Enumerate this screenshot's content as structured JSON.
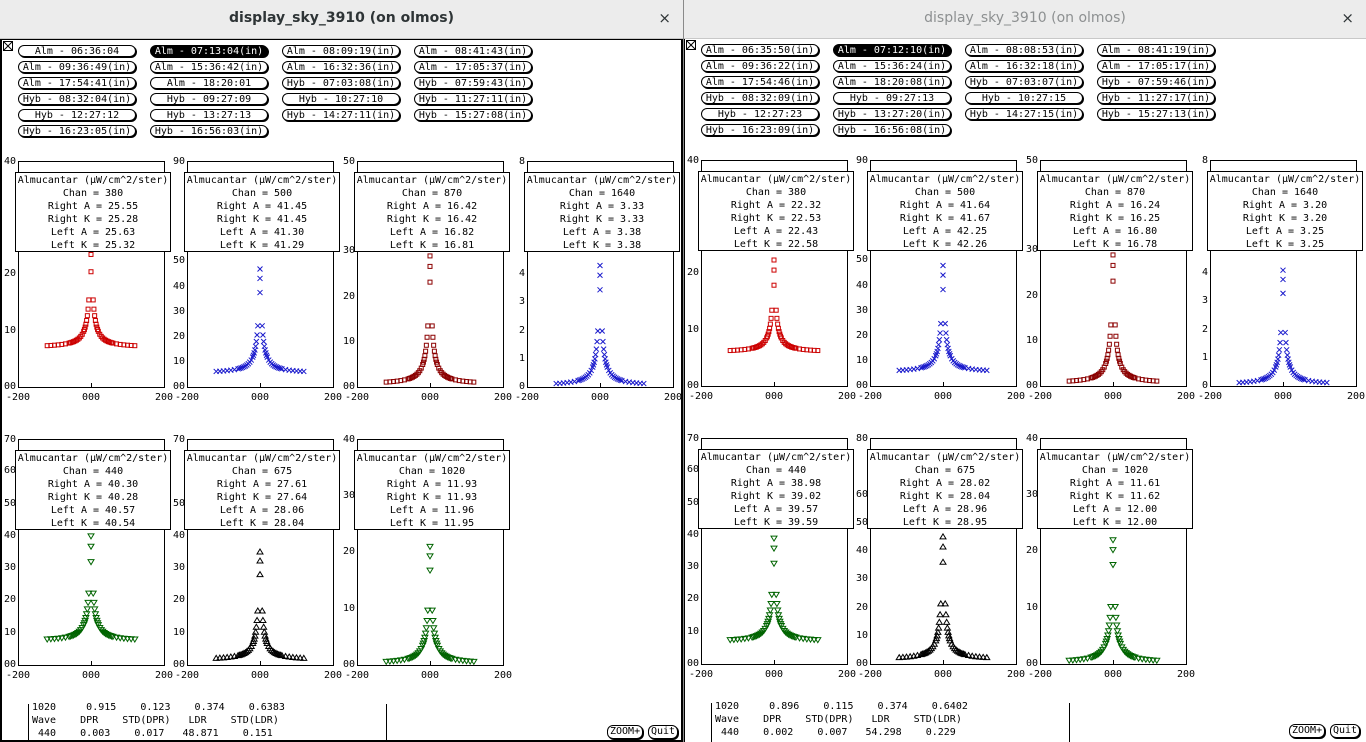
{
  "windows": [
    {
      "title": "display_sky_3910 (on olmos)",
      "active": true,
      "close_glyph": "×",
      "time_buttons": [
        {
          "label": "Alm - 06:36:04",
          "selected": false
        },
        {
          "label": "Alm - 07:13:04(in)",
          "selected": true
        },
        {
          "label": "Alm - 08:09:19(in)",
          "selected": false
        },
        {
          "label": "Alm - 08:41:43(in)",
          "selected": false
        },
        {
          "label": "Alm - 09:36:49(in)",
          "selected": false
        },
        {
          "label": "Alm - 15:36:42(in)",
          "selected": false
        },
        {
          "label": "Alm - 16:32:36(in)",
          "selected": false
        },
        {
          "label": "Alm - 17:05:37(in)",
          "selected": false
        },
        {
          "label": "Alm - 17:54:41(in)",
          "selected": false
        },
        {
          "label": "Alm - 18:20:01",
          "selected": false
        },
        {
          "label": "Hyb - 07:03:08(in)",
          "selected": false
        },
        {
          "label": "Hyb - 07:59:43(in)",
          "selected": false
        },
        {
          "label": "Hyb - 08:32:04(in)",
          "selected": false
        },
        {
          "label": "Hyb - 09:27:09",
          "selected": false
        },
        {
          "label": "Hyb - 10:27:10",
          "selected": false
        },
        {
          "label": "Hyb - 11:27:11(in)",
          "selected": false
        },
        {
          "label": "Hyb - 12:27:12",
          "selected": false
        },
        {
          "label": "Hyb - 13:27:13",
          "selected": false
        },
        {
          "label": "Hyb - 14:27:11(in)",
          "selected": false
        },
        {
          "label": "Hyb - 15:27:08(in)",
          "selected": false
        },
        {
          "label": "Hyb - 16:23:05(in)",
          "selected": false
        },
        {
          "label": "Hyb - 16:56:03(in)",
          "selected": false
        }
      ],
      "panels": [
        {
          "info_title": "Almucantar (µW/cm^2/ster)",
          "chan": "Chan = 380",
          "right_a": "Right A = 25.55",
          "right_k": "Right K = 25.28",
          "left_a": "Left A = 25.63",
          "left_k": "Left K = 25.32",
          "y_ticks": [
            "40",
            "20",
            "10",
            "00"
          ],
          "y_max": 40,
          "peak": 25.5,
          "wing": 7.0,
          "dip": 0,
          "marker": "square",
          "color": "#cc0000",
          "x_ticks": [
            "-200",
            "000",
            "200"
          ]
        },
        {
          "info_title": "Almucantar (µW/cm^2/ster)",
          "chan": "Chan = 500",
          "right_a": "Right A = 41.45",
          "right_k": "Right K = 41.45",
          "left_a": "Left A = 41.30",
          "left_k": "Left K = 41.29",
          "y_ticks": [
            "90",
            "50",
            "40",
            "30",
            "20",
            "10",
            "00"
          ],
          "y_max": 90,
          "peak": 47,
          "wing": 5.5,
          "dip": 0,
          "marker": "cross",
          "color": "#1a1acc",
          "x_ticks": [
            "-200",
            "000",
            "200"
          ]
        },
        {
          "info_title": "Almucantar (µW/cm^2/ster)",
          "chan": "Chan = 870",
          "right_a": "Right A = 16.42",
          "right_k": "Right K = 16.42",
          "left_a": "Left A = 16.82",
          "left_k": "Left K = 16.81",
          "y_ticks": [
            "50",
            "30",
            "20",
            "10",
            "00"
          ],
          "y_max": 50,
          "peak": 29,
          "wing": 0.6,
          "dip": 0,
          "marker": "square",
          "color": "#8b0000",
          "x_ticks": [
            "-200",
            "000",
            "200"
          ]
        },
        {
          "info_title": "Almucantar (µW/cm^2/ster)",
          "chan": "Chan = 1640",
          "right_a": "Right A = 3.33",
          "right_k": "Right K = 3.33",
          "left_a": "Left A = 3.38",
          "left_k": "Left K = 3.38",
          "y_ticks": [
            "8",
            "4",
            "3",
            "2",
            "1",
            "0"
          ],
          "y_max": 8,
          "peak": 4.3,
          "wing": 0.05,
          "dip": 0,
          "marker": "cross",
          "color": "#1a1acc",
          "x_ticks": [
            "-200",
            "000",
            "200"
          ]
        },
        {
          "info_title": "Almucantar (µW/cm^2/ster)",
          "chan": "Chan = 440",
          "right_a": "Right A = 40.30",
          "right_k": "Right K = 40.28",
          "left_a": "Left A = 40.57",
          "left_k": "Left K = 40.54",
          "y_ticks": [
            "70",
            "60",
            "50",
            "40",
            "30",
            "20",
            "10",
            "00"
          ],
          "y_max": 70,
          "peak": 40,
          "wing": 7.5,
          "dip": 0,
          "marker": "tridown",
          "color": "#006400",
          "x_ticks": [
            "-200",
            "000",
            "200"
          ]
        },
        {
          "info_title": "Almucantar (µW/cm^2/ster)",
          "chan": "Chan = 675",
          "right_a": "Right A = 27.61",
          "right_k": "Right K = 27.64",
          "left_a": "Left A = 28.06",
          "left_k": "Left K = 28.04",
          "y_ticks": [
            "70",
            "50",
            "40",
            "30",
            "20",
            "10",
            "00"
          ],
          "y_max": 70,
          "peak": 35,
          "wing": 1.5,
          "dip": 0,
          "marker": "triup",
          "color": "#000000",
          "x_ticks": [
            "-200",
            "000",
            "200"
          ]
        },
        {
          "info_title": "Almucantar (µW/cm^2/ster)",
          "chan": "Chan = 1020",
          "right_a": "Right A = 11.93",
          "right_k": "Right K = 11.93",
          "left_a": "Left A = 11.96",
          "left_k": "Left K = 11.95",
          "y_ticks": [
            "40",
            "30",
            "20",
            "10",
            "00"
          ],
          "y_max": 40,
          "peak": 21,
          "wing": 0.3,
          "dip": 0,
          "marker": "tridown",
          "color": "#006400",
          "x_ticks": [
            "-200",
            "000",
            "200"
          ]
        }
      ],
      "bottom_lines": [
        "1020     0.915    0.123    0.374    0.6383",
        "Wave    DPR    STD(DPR)   LDR    STD(LDR)",
        " 440    0.003    0.017   48.871    0.151"
      ],
      "zoom_label": "ZOOM+",
      "quit_label": "Quit"
    },
    {
      "title": "display_sky_3910 (on olmos)",
      "active": false,
      "close_glyph": "×",
      "time_buttons": [
        {
          "label": "Alm - 06:35:50(in)",
          "selected": false
        },
        {
          "label": "Alm - 07:12:10(in)",
          "selected": true
        },
        {
          "label": "Alm - 08:08:53(in)",
          "selected": false
        },
        {
          "label": "Alm - 08:41:19(in)",
          "selected": false
        },
        {
          "label": "Alm - 09:36:22(in)",
          "selected": false
        },
        {
          "label": "Alm - 15:36:24(in)",
          "selected": false
        },
        {
          "label": "Alm - 16:32:18(in)",
          "selected": false
        },
        {
          "label": "Alm - 17:05:17(in)",
          "selected": false
        },
        {
          "label": "Alm - 17:54:46(in)",
          "selected": false
        },
        {
          "label": "Alm - 18:20:08(in)",
          "selected": false
        },
        {
          "label": "Hyb - 07:03:07(in)",
          "selected": false
        },
        {
          "label": "Hyb - 07:59:46(in)",
          "selected": false
        },
        {
          "label": "Hyb - 08:32:09(in)",
          "selected": false
        },
        {
          "label": "Hyb - 09:27:13",
          "selected": false
        },
        {
          "label": "Hyb - 10:27:15",
          "selected": false
        },
        {
          "label": "Hyb - 11:27:17(in)",
          "selected": false
        },
        {
          "label": "Hyb - 12:27:23",
          "selected": false
        },
        {
          "label": "Hyb - 13:27:20(in)",
          "selected": false
        },
        {
          "label": "Hyb - 14:27:15(in)",
          "selected": false
        },
        {
          "label": "Hyb - 15:27:13(in)",
          "selected": false
        },
        {
          "label": "Hyb - 16:23:09(in)",
          "selected": false
        },
        {
          "label": "Hyb - 16:56:08(in)",
          "selected": false
        }
      ],
      "panels": [
        {
          "info_title": "Almucantar (µW/cm^2/ster)",
          "chan": "Chan = 380",
          "right_a": "Right A = 22.32",
          "right_k": "Right K = 22.53",
          "left_a": "Left A = 22.43",
          "left_k": "Left K = 22.58",
          "y_ticks": [
            "40",
            "20",
            "10",
            "00"
          ],
          "y_max": 40,
          "peak": 22.3,
          "wing": 6.0,
          "dip": 1,
          "marker": "square",
          "color": "#cc0000",
          "x_ticks": [
            "-200",
            "000",
            "200"
          ]
        },
        {
          "info_title": "Almucantar (µW/cm^2/ster)",
          "chan": "Chan = 500",
          "right_a": "Right A = 41.64",
          "right_k": "Right K = 41.67",
          "left_a": "Left A = 42.25",
          "left_k": "Left K = 42.26",
          "y_ticks": [
            "90",
            "50",
            "40",
            "30",
            "20",
            "10",
            "00"
          ],
          "y_max": 90,
          "peak": 48,
          "wing": 5.5,
          "dip": 1,
          "marker": "cross",
          "color": "#1a1acc",
          "x_ticks": [
            "-200",
            "000",
            "200"
          ]
        },
        {
          "info_title": "Almucantar (µW/cm^2/ster)",
          "chan": "Chan = 870",
          "right_a": "Right A = 16.24",
          "right_k": "Right K = 16.25",
          "left_a": "Left A = 16.80",
          "left_k": "Left K = 16.78",
          "y_ticks": [
            "50",
            "30",
            "20",
            "10",
            "00"
          ],
          "y_max": 50,
          "peak": 29,
          "wing": 0.6,
          "dip": 0,
          "marker": "square",
          "color": "#8b0000",
          "x_ticks": [
            "-200",
            "000",
            "200"
          ]
        },
        {
          "info_title": "Almucantar (µW/cm^2/ster)",
          "chan": "Chan = 1640",
          "right_a": "Right A = 3.20",
          "right_k": "Right K = 3.20",
          "left_a": "Left A = 3.25",
          "left_k": "Left K = 3.25",
          "y_ticks": [
            "8",
            "4",
            "3",
            "2",
            "1",
            "0"
          ],
          "y_max": 8,
          "peak": 4.1,
          "wing": 0.05,
          "dip": 1,
          "marker": "cross",
          "color": "#1a1acc",
          "x_ticks": [
            "-200",
            "000",
            "200"
          ]
        },
        {
          "info_title": "Almucantar (µW/cm^2/ster)",
          "chan": "Chan = 440",
          "right_a": "Right A = 38.98",
          "right_k": "Right K = 39.02",
          "left_a": "Left A = 39.57",
          "left_k": "Left K = 39.59",
          "y_ticks": [
            "70",
            "60",
            "50",
            "40",
            "30",
            "20",
            "10",
            "00"
          ],
          "y_max": 70,
          "peak": 39,
          "wing": 7.0,
          "dip": 0,
          "marker": "tridown",
          "color": "#006400",
          "x_ticks": [
            "-200",
            "000",
            "200"
          ]
        },
        {
          "info_title": "Almucantar (µW/cm^2/ster)",
          "chan": "Chan = 675",
          "right_a": "Right A = 28.02",
          "right_k": "Right K = 28.04",
          "left_a": "Left A = 28.96",
          "left_k": "Left K = 28.95",
          "y_ticks": [
            "80",
            "60",
            "50",
            "40",
            "30",
            "20",
            "10",
            "00"
          ],
          "y_max": 80,
          "peak": 45,
          "wing": 1.5,
          "dip": 0,
          "marker": "triup",
          "color": "#000000",
          "x_ticks": [
            "-200",
            "000",
            "200"
          ]
        },
        {
          "info_title": "Almucantar (µW/cm^2/ster)",
          "chan": "Chan = 1020",
          "right_a": "Right A = 11.61",
          "right_k": "Right K = 11.62",
          "left_a": "Left A = 12.00",
          "left_k": "Left K = 12.00",
          "y_ticks": [
            "40",
            "30",
            "20",
            "10",
            "00"
          ],
          "y_max": 40,
          "peak": 22,
          "wing": 0.3,
          "dip": 1,
          "marker": "tridown",
          "color": "#006400",
          "x_ticks": [
            "-200",
            "000",
            "200"
          ]
        }
      ],
      "bottom_lines": [
        "1020     0.896    0.115    0.374    0.6402",
        "Wave    DPR    STD(DPR)   LDR    STD(LDR)",
        " 440    0.002    0.007   54.298    0.229"
      ],
      "zoom_label": "ZOOM+",
      "quit_label": "Quit"
    }
  ]
}
